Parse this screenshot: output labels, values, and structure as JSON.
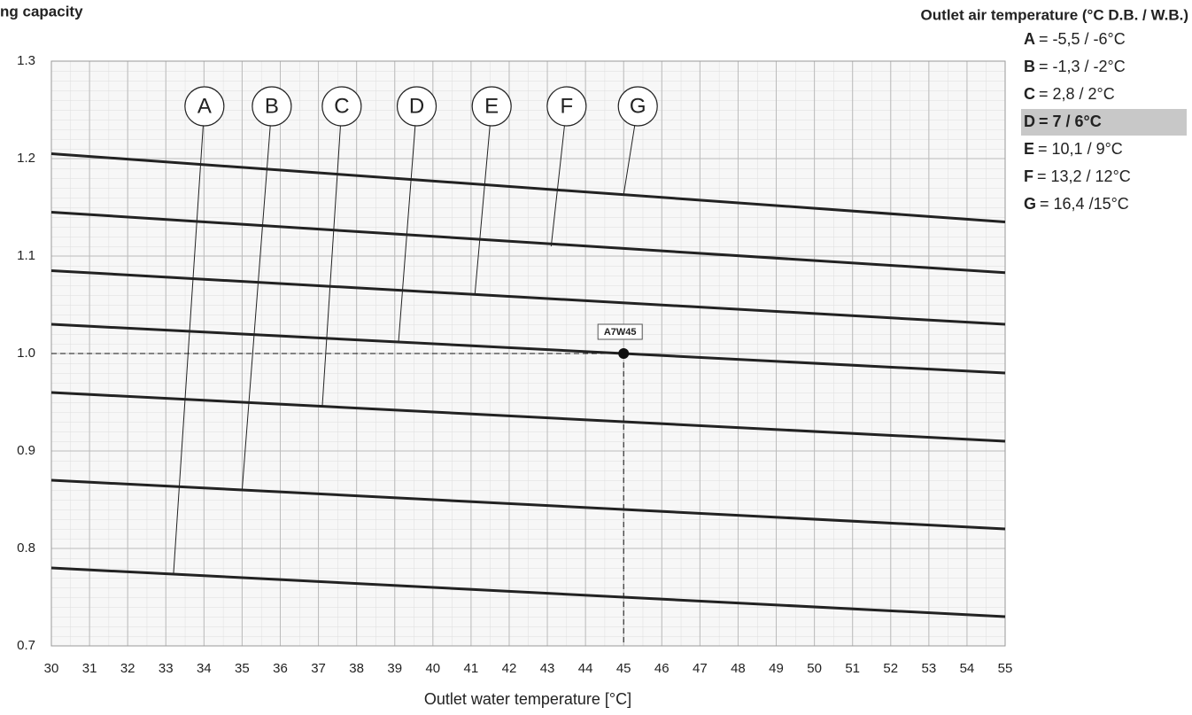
{
  "chart_data": {
    "type": "line",
    "title": "ng capacity",
    "xlabel": "Outlet water temperature [°C]",
    "x": [
      30,
      55
    ],
    "series": [
      {
        "name": "A",
        "color": "#222222",
        "values": [
          0.78,
          0.73
        ]
      },
      {
        "name": "B",
        "color": "#222222",
        "values": [
          0.87,
          0.82
        ]
      },
      {
        "name": "C",
        "color": "#222222",
        "values": [
          0.96,
          0.91
        ]
      },
      {
        "name": "D",
        "color": "#222222",
        "values": [
          1.03,
          0.98
        ]
      },
      {
        "name": "E",
        "color": "#222222",
        "values": [
          1.085,
          1.03
        ]
      },
      {
        "name": "F",
        "color": "#222222",
        "values": [
          1.145,
          1.083
        ]
      },
      {
        "name": "G",
        "color": "#222222",
        "values": [
          1.205,
          1.135
        ]
      }
    ],
    "xlim": [
      30,
      55
    ],
    "xticks": [
      30,
      31,
      32,
      33,
      34,
      35,
      36,
      37,
      38,
      39,
      40,
      41,
      42,
      43,
      44,
      45,
      46,
      47,
      48,
      49,
      50,
      51,
      52,
      53,
      54,
      55
    ],
    "ylim": [
      0.7,
      1.3
    ],
    "yticks": [
      0.7,
      0.8,
      0.9,
      1.0,
      1.1,
      1.2,
      1.3
    ],
    "ytick_labels": [
      "0.7",
      "0.8",
      "0.9",
      "1.0",
      "1.1",
      "1.2",
      "1.3"
    ],
    "grid": true,
    "leaders": [
      {
        "text": "A",
        "x": 33.2,
        "y": 0.773
      },
      {
        "text": "B",
        "x": 35.0,
        "y": 0.86
      },
      {
        "text": "C",
        "x": 37.1,
        "y": 0.945
      },
      {
        "text": "D",
        "x": 39.1,
        "y": 1.012
      },
      {
        "text": "E",
        "x": 41.1,
        "y": 1.06
      },
      {
        "text": "F",
        "x": 43.1,
        "y": 1.11
      },
      {
        "text": "G",
        "x": 45.0,
        "y": 1.163
      }
    ],
    "point": {
      "label": "A7W45",
      "x": 45,
      "y": 1.0
    },
    "legend": {
      "title": "Outlet air temperature (°C D.B. / W.B.)",
      "items": [
        {
          "key": "A",
          "text": "=  -5,5 / -6°C"
        },
        {
          "key": "B",
          "text": "= -1,3 / -2°C"
        },
        {
          "key": "C",
          "text": "= 2,8 / 2°C"
        },
        {
          "key": "D",
          "text": "= 7 / 6°C",
          "highlight": true
        },
        {
          "key": "E",
          "text": "= 10,1 / 9°C"
        },
        {
          "key": "F",
          "text": "= 13,2 / 12°C"
        },
        {
          "key": "G",
          "text": "= 16,4 /15°C"
        }
      ]
    }
  }
}
